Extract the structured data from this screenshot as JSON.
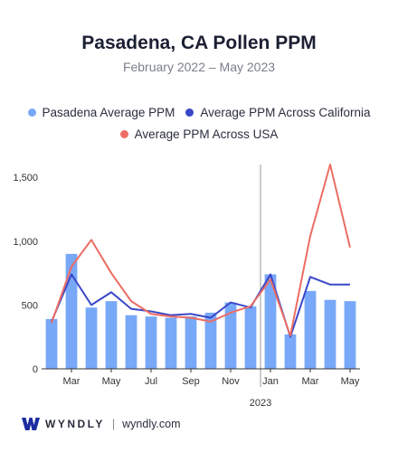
{
  "colors": {
    "bar": "#78a8f8",
    "california": "#3a47c8",
    "usa": "#ec6d64",
    "axis": "#333333",
    "divider": "#999999",
    "brand": "#1c2ba0"
  },
  "footer": {
    "brand": "WYNDLY",
    "separator": "|",
    "url": "wyndly.com",
    "logo_icon": "wyndly-w-logo-icon"
  },
  "chart_data": {
    "type": "bar",
    "title": "Pasadena, CA Pollen PPM",
    "subtitle": "February 2022 – May 2023",
    "xlabel": "",
    "ylabel": "",
    "ylim": [
      0,
      1600
    ],
    "yticks": [
      0,
      500,
      1000,
      1500
    ],
    "ytick_labels": [
      "0",
      "500",
      "1,000",
      "1,500"
    ],
    "grid": false,
    "legend_position": "top",
    "categories": [
      "Feb 2022",
      "Mar 2022",
      "Apr 2022",
      "May 2022",
      "Jun 2022",
      "Jul 2022",
      "Aug 2022",
      "Sep 2022",
      "Oct 2022",
      "Nov 2022",
      "Dec 2022",
      "Jan 2023",
      "Feb 2023",
      "Mar 2023",
      "Apr 2023",
      "May 2023"
    ],
    "x_tick_labels": [
      "",
      "Mar",
      "",
      "May",
      "",
      "Jul",
      "",
      "Sep",
      "",
      "Nov",
      "",
      "Jan",
      "",
      "Mar",
      "",
      "May"
    ],
    "year_marker": {
      "label": "2023",
      "before_category_index": 11
    },
    "series": [
      {
        "name": "Pasadena Average PPM",
        "kind": "bar",
        "values": [
          390,
          900,
          480,
          530,
          420,
          410,
          400,
          410,
          440,
          520,
          490,
          740,
          270,
          610,
          540,
          530
        ]
      },
      {
        "name": "Average PPM Across California",
        "kind": "line",
        "values": [
          370,
          740,
          500,
          600,
          470,
          450,
          420,
          430,
          400,
          520,
          480,
          740,
          250,
          720,
          660,
          660
        ]
      },
      {
        "name": "Average PPM Across USA",
        "kind": "line",
        "values": [
          360,
          800,
          1010,
          750,
          530,
          430,
          410,
          400,
          370,
          440,
          490,
          700,
          260,
          1040,
          1600,
          950
        ]
      }
    ]
  }
}
